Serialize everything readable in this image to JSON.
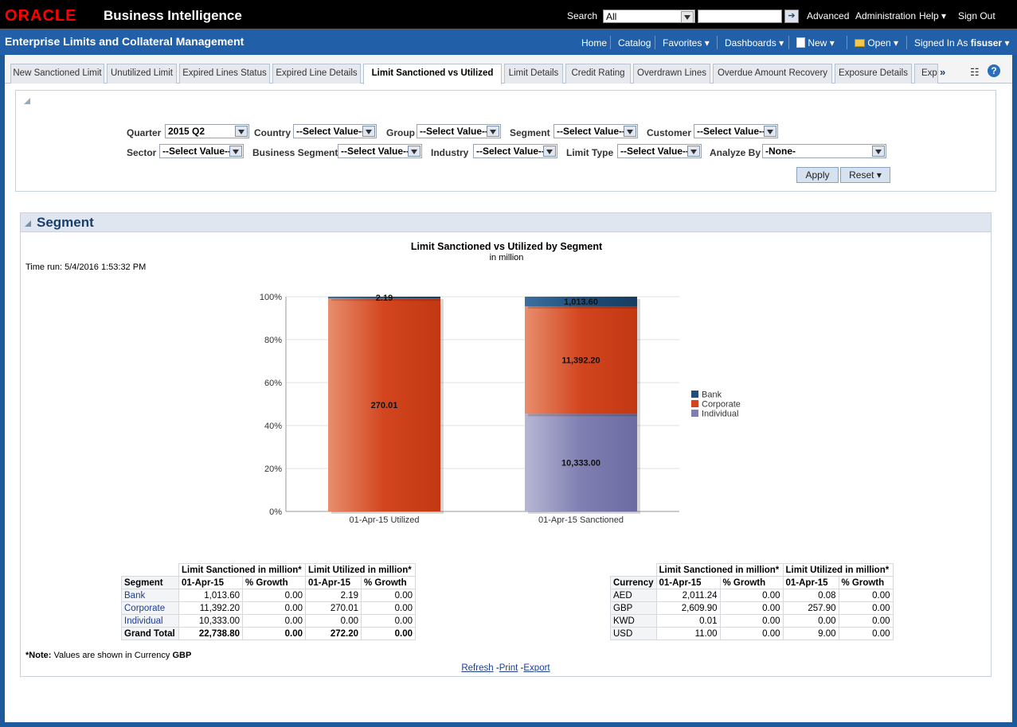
{
  "topbar": {
    "brand": "ORACLE",
    "product": "Business Intelligence",
    "search_label": "Search",
    "search_scope": "All",
    "search_value": "",
    "advanced": "Advanced",
    "administration": "Administration",
    "help": "Help",
    "sign_out": "Sign Out"
  },
  "subbar": {
    "title": "Enterprise Limits and Collateral Management",
    "home": "Home",
    "catalog": "Catalog",
    "favorites": "Favorites",
    "dashboards": "Dashboards",
    "new": "New",
    "open": "Open",
    "signed_in_as": "Signed In As",
    "user": "fisuser"
  },
  "tabs": [
    {
      "label": "New Sanctioned Limit"
    },
    {
      "label": "Unutilized Limit"
    },
    {
      "label": "Expired Lines Status"
    },
    {
      "label": "Expired Line Details"
    },
    {
      "label": "Limit Sanctioned vs Utilized"
    },
    {
      "label": "Limit Details"
    },
    {
      "label": "Credit Rating"
    },
    {
      "label": "Overdrawn Lines"
    },
    {
      "label": "Overdue Amount Recovery"
    },
    {
      "label": "Exposure Details"
    },
    {
      "label": "Expo"
    }
  ],
  "prompts": {
    "quarter_label": "Quarter",
    "quarter_value": "2015 Q2",
    "country_label": "Country",
    "country_value": "--Select Value--",
    "group_label": "Group",
    "group_value": "--Select Value--",
    "segment_label": "Segment",
    "segment_value": "--Select Value--",
    "customer_label": "Customer",
    "customer_value": "--Select Value--",
    "sector_label": "Sector",
    "sector_value": "--Select Value--",
    "bizseg_label": "Business Segment",
    "bizseg_value": "--Select Value--",
    "industry_label": "Industry",
    "industry_value": "--Select Value--",
    "limittype_label": "Limit Type",
    "limittype_value": "--Select Value--",
    "analyze_label": "Analyze By",
    "analyze_value": "-None-",
    "apply": "Apply",
    "reset": "Reset"
  },
  "section": {
    "title": "Segment",
    "time_run": "Time run: 5/4/2016 1:53:32 PM",
    "note_prefix": "*Note:",
    "note_text": " Values are shown in Currency ",
    "note_currency": "GBP",
    "refresh": "Refresh",
    "print": "Print",
    "export": "Export"
  },
  "chart_data": {
    "type": "bar",
    "stacked": "percent",
    "title": "Limit Sanctioned vs Utilized by Segment",
    "subtitle": "in million",
    "categories": [
      "01-Apr-15 Utilized",
      "01-Apr-15 Sanctioned"
    ],
    "y_ticks": [
      "0%",
      "20%",
      "40%",
      "60%",
      "80%",
      "100%"
    ],
    "ylim": [
      0,
      100
    ],
    "series": [
      {
        "name": "Individual",
        "values": [
          0,
          10333.0
        ],
        "labels": [
          "",
          "10,333.00"
        ],
        "color": "#7f7fb2"
      },
      {
        "name": "Corporate",
        "values": [
          270.01,
          11392.2
        ],
        "labels": [
          "270.01",
          "11,392.20"
        ],
        "color": "#d2451e"
      },
      {
        "name": "Bank",
        "values": [
          2.19,
          1013.6
        ],
        "labels": [
          "2.19",
          "1,013.60"
        ],
        "color": "#1f4e79"
      }
    ],
    "legend": [
      "Bank",
      "Corporate",
      "Individual"
    ],
    "legend_position": "right"
  },
  "segment_table": {
    "group1": "Limit Sanctioned in million*",
    "group2": "Limit Utilized in million*",
    "headers": [
      "Segment",
      "01-Apr-15",
      "% Growth",
      "01-Apr-15",
      "% Growth"
    ],
    "rows": [
      [
        "Bank",
        "1,013.60",
        "0.00",
        "2.19",
        "0.00"
      ],
      [
        "Corporate",
        "11,392.20",
        "0.00",
        "270.01",
        "0.00"
      ],
      [
        "Individual",
        "10,333.00",
        "0.00",
        "0.00",
        "0.00"
      ]
    ],
    "total": [
      "Grand Total",
      "22,738.80",
      "0.00",
      "272.20",
      "0.00"
    ]
  },
  "currency_table": {
    "group1": "Limit Sanctioned in million*",
    "group2": "Limit Utilized in million*",
    "headers": [
      "Currency",
      "01-Apr-15",
      "% Growth",
      "01-Apr-15",
      "% Growth"
    ],
    "rows": [
      [
        "AED",
        "2,011.24",
        "0.00",
        "0.08",
        "0.00"
      ],
      [
        "GBP",
        "2,609.90",
        "0.00",
        "257.90",
        "0.00"
      ],
      [
        "KWD",
        "0.01",
        "0.00",
        "0.00",
        "0.00"
      ],
      [
        "USD",
        "11.00",
        "0.00",
        "9.00",
        "0.00"
      ]
    ]
  }
}
